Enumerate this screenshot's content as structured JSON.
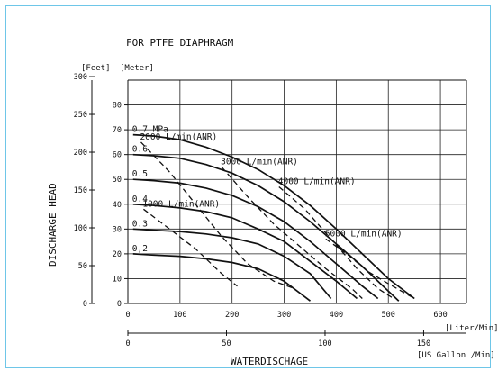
{
  "chart_data": {
    "type": "line",
    "title": "FOR PTFE DIAPHRAGM",
    "ylabel": "DISCHARGE HEAD",
    "xlabel": "WATERDISCHAGE",
    "y_units": {
      "feet": "[Feet]",
      "meter": "[Meter]"
    },
    "x_units": {
      "lpm": "[Liter/Min]",
      "gpm": "[US Gallon /Min]"
    },
    "x_lpm_ticks": [
      0,
      100,
      200,
      300,
      400,
      500,
      600
    ],
    "x_gpm_ticks": [
      0,
      50,
      100,
      150
    ],
    "y_meter_ticks": [
      0,
      10,
      20,
      30,
      40,
      50,
      60,
      70,
      80
    ],
    "y_feet_ticks": [
      0,
      50,
      100,
      150,
      200,
      250,
      300
    ],
    "xlim": [
      0,
      650
    ],
    "ylim_m": [
      0,
      90
    ],
    "grid": true,
    "pressure_series": [
      {
        "name": "0.2",
        "label": "0,2",
        "points": [
          [
            10,
            20
          ],
          [
            50,
            19.5
          ],
          [
            100,
            19
          ],
          [
            150,
            18
          ],
          [
            200,
            16.5
          ],
          [
            250,
            14
          ],
          [
            300,
            9
          ],
          [
            350,
            1
          ]
        ]
      },
      {
        "name": "0.3",
        "label": "0.3",
        "points": [
          [
            10,
            30
          ],
          [
            50,
            29.5
          ],
          [
            100,
            29
          ],
          [
            150,
            28
          ],
          [
            200,
            26.5
          ],
          [
            250,
            24
          ],
          [
            300,
            19
          ],
          [
            350,
            12
          ],
          [
            390,
            2
          ]
        ]
      },
      {
        "name": "0.4",
        "label": "0.4",
        "points": [
          [
            10,
            40
          ],
          [
            50,
            39.5
          ],
          [
            100,
            38.5
          ],
          [
            150,
            37
          ],
          [
            200,
            34.5
          ],
          [
            250,
            30
          ],
          [
            300,
            25
          ],
          [
            350,
            17
          ],
          [
            400,
            9
          ],
          [
            440,
            2
          ]
        ]
      },
      {
        "name": "0.5",
        "label": "0.5",
        "points": [
          [
            10,
            50
          ],
          [
            50,
            49.5
          ],
          [
            100,
            48.5
          ],
          [
            150,
            46.5
          ],
          [
            200,
            43.5
          ],
          [
            250,
            39
          ],
          [
            300,
            33
          ],
          [
            350,
            25
          ],
          [
            400,
            16
          ],
          [
            450,
            7
          ],
          [
            480,
            2
          ]
        ]
      },
      {
        "name": "0.6",
        "label": "0.6",
        "points": [
          [
            10,
            60
          ],
          [
            50,
            59.5
          ],
          [
            100,
            58.5
          ],
          [
            150,
            56
          ],
          [
            200,
            52.5
          ],
          [
            250,
            47.5
          ],
          [
            300,
            41
          ],
          [
            350,
            33
          ],
          [
            400,
            24
          ],
          [
            450,
            15
          ],
          [
            500,
            5
          ],
          [
            520,
            1
          ]
        ]
      },
      {
        "name": "0.7",
        "label": "0.7 MPa",
        "points": [
          [
            10,
            68
          ],
          [
            50,
            67.5
          ],
          [
            100,
            66
          ],
          [
            150,
            63
          ],
          [
            200,
            59
          ],
          [
            250,
            54
          ],
          [
            300,
            47.5
          ],
          [
            350,
            39.5
          ],
          [
            400,
            30
          ],
          [
            450,
            20
          ],
          [
            500,
            10
          ],
          [
            550,
            2
          ]
        ]
      }
    ],
    "air_series": [
      {
        "name": "1000 L/min(ANR)",
        "points": [
          [
            30,
            38
          ],
          [
            80,
            30
          ],
          [
            130,
            22
          ],
          [
            180,
            12
          ],
          [
            210,
            7
          ]
        ]
      },
      {
        "name": "2000 L/min(ANR)",
        "points": [
          [
            25,
            65
          ],
          [
            80,
            53
          ],
          [
            130,
            40
          ],
          [
            180,
            27
          ],
          [
            230,
            16
          ],
          [
            280,
            9
          ],
          [
            320,
            6
          ]
        ]
      },
      {
        "name": "3000 L/min(ANR)",
        "points": [
          [
            180,
            55
          ],
          [
            230,
            43
          ],
          [
            280,
            32
          ],
          [
            330,
            23
          ],
          [
            380,
            14
          ],
          [
            430,
            6
          ],
          [
            450,
            2
          ]
        ]
      },
      {
        "name": "4000 L/min(ANR)",
        "points": [
          [
            290,
            47
          ],
          [
            340,
            38
          ],
          [
            390,
            26
          ],
          [
            440,
            14
          ],
          [
            480,
            6
          ],
          [
            510,
            2
          ]
        ]
      },
      {
        "name": "5000 L/min(ANR)",
        "points": [
          [
            380,
            26
          ],
          [
            420,
            20
          ],
          [
            460,
            13
          ],
          [
            500,
            8
          ],
          [
            550,
            2
          ]
        ]
      }
    ]
  }
}
